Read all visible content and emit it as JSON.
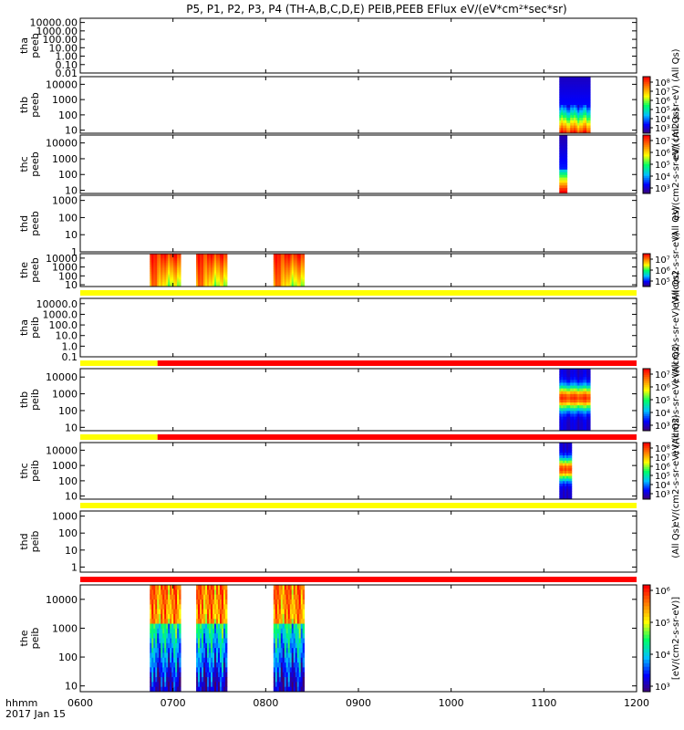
{
  "chart_data": {
    "type": "heatmap",
    "title": "P5, P1, P2, P3, P4 (TH-A,B,C,D,E) PEIB,PEEB EFlux eV/(eV*cm²*sec*sr)",
    "x_tick_labels": [
      "0600",
      "0700",
      "0800",
      "0900",
      "1000",
      "1100",
      "1200"
    ],
    "x_range_minutes": [
      360,
      720
    ],
    "footer": {
      "format_label": "hhmm",
      "date_label": "2017 Jan 15"
    },
    "colors": {
      "flag_yellow": "#ffff00",
      "flag_red": "#ff0000",
      "colorscale": [
        "#440066",
        "#0000ff",
        "#00bfff",
        "#00ff66",
        "#ffff00",
        "#ff8000",
        "#ff0000"
      ]
    },
    "panels": [
      {
        "id": "tha_peeb",
        "ylabel": [
          "tha",
          "peeb"
        ],
        "yticks": [
          "10000.00",
          "1000.00",
          "100.00",
          "10.00",
          "1.00",
          "0.10",
          "0.01"
        ],
        "log_range": [
          -2,
          4.5
        ],
        "colorbar": null,
        "bursts": [],
        "flag": null
      },
      {
        "id": "thb_peeb",
        "ylabel": [
          "thb",
          "peeb"
        ],
        "yticks": [
          "10000",
          "1000",
          "100",
          "10"
        ],
        "log_range": [
          0.8,
          4.5
        ],
        "colorbar": {
          "title": "eV/(cm2-s-sr-eV) (All Qs)",
          "ticks": [
            "10⁸",
            "10⁷",
            "10⁶",
            "10⁵",
            "10⁴",
            "10³"
          ],
          "exp_range": [
            3,
            8
          ]
        },
        "bursts": [
          {
            "start": "1110",
            "end": "1130",
            "style": "thb"
          }
        ],
        "flag": null
      },
      {
        "id": "thc_peeb",
        "ylabel": [
          "thc",
          "peeb"
        ],
        "yticks": [
          "10000",
          "1000",
          "100",
          "10"
        ],
        "log_range": [
          0.8,
          4.5
        ],
        "colorbar": {
          "title": "eV/(cm2-s-sr-eV) (All Qs)",
          "ticks": [
            "10⁷",
            "10⁶",
            "10⁵",
            "10⁴",
            "10³"
          ],
          "exp_range": [
            3,
            7.5
          ]
        },
        "bursts": [
          {
            "start": "1110",
            "end": "1115",
            "style": "thc"
          }
        ],
        "flag": null
      },
      {
        "id": "thd_peeb",
        "ylabel": [
          "thd",
          "peeb"
        ],
        "yticks": [
          "1000",
          "100",
          "10",
          "1"
        ],
        "log_range": [
          0,
          3.3
        ],
        "colorbar": {
          "title": "(All Qs)",
          "ticks": [],
          "exp_range": [
            0,
            1
          ]
        },
        "bursts": [],
        "flag": null
      },
      {
        "id": "the_peeb",
        "ylabel": [
          "the",
          "peeb"
        ],
        "yticks": [
          "10000",
          "1000",
          "100",
          "10"
        ],
        "log_range": [
          0.8,
          4.5
        ],
        "colorbar": {
          "title": "eV/(cm2-s-sr-eV)",
          "ticks": [
            "10⁷",
            "10⁶",
            "10⁵"
          ],
          "exp_range": [
            4,
            7.5
          ]
        },
        "bursts": [
          {
            "start": "0645",
            "end": "0705",
            "style": "the_e"
          },
          {
            "start": "0715",
            "end": "0735",
            "style": "the_e"
          },
          {
            "start": "0805",
            "end": "0825",
            "style": "the_e"
          }
        ],
        "flag": [
          {
            "from": "0600",
            "to": "1200",
            "color": "yellow"
          }
        ]
      },
      {
        "id": "tha_peib",
        "ylabel": [
          "tha",
          "peib"
        ],
        "yticks": [
          "10000.0",
          "1000.0",
          "100.0",
          "10.0",
          "1.0",
          "0.1"
        ],
        "log_range": [
          -1,
          4.5
        ],
        "colorbar": {
          "title": "eV/(cm2-s-sr-eV) (All Qs)",
          "ticks": [],
          "exp_range": [
            0,
            1
          ]
        },
        "bursts": [],
        "flag": [
          {
            "from": "0600",
            "to": "0650",
            "color": "yellow"
          },
          {
            "from": "0650",
            "to": "1200",
            "color": "red"
          }
        ]
      },
      {
        "id": "thb_peib",
        "ylabel": [
          "thb",
          "peib"
        ],
        "yticks": [
          "10000",
          "1000",
          "100",
          "10"
        ],
        "log_range": [
          0.8,
          4.5
        ],
        "colorbar": {
          "title": "eV/(cm2-s-sr-eV) (All Qs)",
          "ticks": [
            "10⁷",
            "10⁶",
            "10⁵",
            "10⁴",
            "10³"
          ],
          "exp_range": [
            3,
            7.5
          ]
        },
        "bursts": [
          {
            "start": "1110",
            "end": "1130",
            "style": "thb_i"
          }
        ],
        "flag": [
          {
            "from": "0600",
            "to": "0650",
            "color": "yellow"
          },
          {
            "from": "0650",
            "to": "1200",
            "color": "red"
          }
        ]
      },
      {
        "id": "thc_peib",
        "ylabel": [
          "thc",
          "peib"
        ],
        "yticks": [
          "10000",
          "1000",
          "100",
          "10"
        ],
        "log_range": [
          0.8,
          4.5
        ],
        "colorbar": {
          "title": "eV/(cm2-s-sr-eV) (All Qs)",
          "ticks": [
            "10⁸",
            "10⁷",
            "10⁶",
            "10⁵",
            "10⁴",
            "10³"
          ],
          "exp_range": [
            3,
            8
          ]
        },
        "bursts": [
          {
            "start": "1110",
            "end": "1118",
            "style": "thc_i"
          }
        ],
        "flag": [
          {
            "from": "0600",
            "to": "1200",
            "color": "yellow"
          }
        ]
      },
      {
        "id": "thd_peib",
        "ylabel": [
          "thd",
          "peib"
        ],
        "yticks": [
          "1000",
          "100",
          "10",
          "1"
        ],
        "log_range": [
          -0.3,
          3.3
        ],
        "colorbar": {
          "title": "(All Qs)",
          "ticks": [],
          "exp_range": [
            0,
            1
          ]
        },
        "bursts": [],
        "flag": [
          {
            "from": "0600",
            "to": "1200",
            "color": "red"
          }
        ]
      },
      {
        "id": "the_peib",
        "ylabel": [
          "the",
          "peib"
        ],
        "yticks": [
          "10000",
          "1000",
          "100",
          "10"
        ],
        "log_range": [
          0.8,
          4.5
        ],
        "colorbar": {
          "title": "[eV/(cm2-s-sr-eV)]",
          "ticks": [
            "10⁶",
            "10⁵",
            "10⁴",
            "10³"
          ],
          "exp_range": [
            2.5,
            6.5
          ]
        },
        "bursts": [
          {
            "start": "0645",
            "end": "0705",
            "style": "the_i"
          },
          {
            "start": "0715",
            "end": "0735",
            "style": "the_i"
          },
          {
            "start": "0805",
            "end": "0825",
            "style": "the_i"
          }
        ],
        "flag": null
      }
    ]
  }
}
